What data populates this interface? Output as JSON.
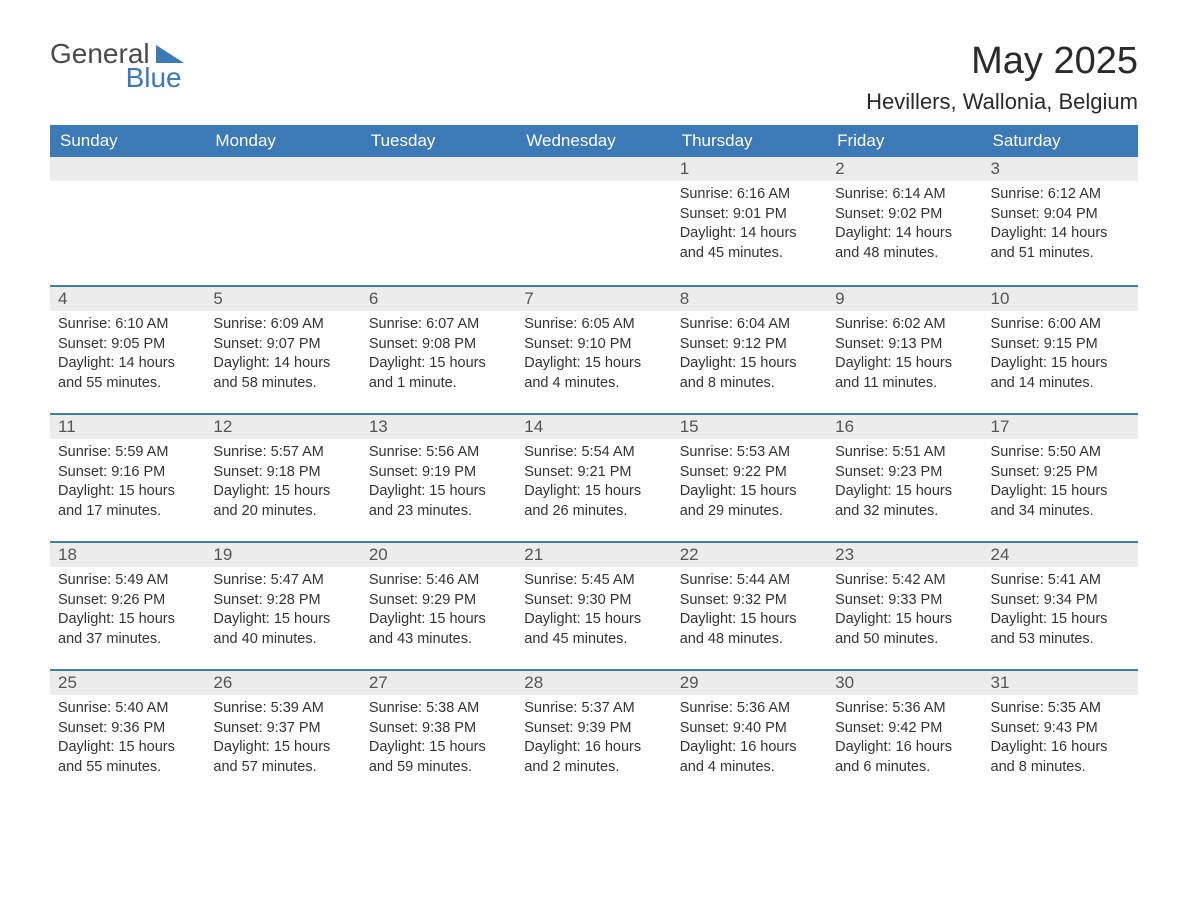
{
  "logo": {
    "word1": "General",
    "word2": "Blue"
  },
  "title": "May 2025",
  "subtitle": "Hevillers, Wallonia, Belgium",
  "colors": {
    "header_bg": "#3b79b7",
    "header_text": "#ffffff",
    "daynum_bg": "#ececec",
    "daynum_border": "#3b79b7",
    "body_bg": "#ffffff",
    "text": "#333333",
    "logo_gray": "#4a4a4a",
    "logo_blue": "#3b79b7"
  },
  "typography": {
    "title_fontsize": 38,
    "subtitle_fontsize": 22,
    "header_fontsize": 17,
    "daynum_fontsize": 17,
    "body_fontsize": 14.5
  },
  "columns": [
    "Sunday",
    "Monday",
    "Tuesday",
    "Wednesday",
    "Thursday",
    "Friday",
    "Saturday"
  ],
  "weeks": [
    [
      null,
      null,
      null,
      null,
      {
        "n": "1",
        "sunrise": "Sunrise: 6:16 AM",
        "sunset": "Sunset: 9:01 PM",
        "day1": "Daylight: 14 hours",
        "day2": "and 45 minutes."
      },
      {
        "n": "2",
        "sunrise": "Sunrise: 6:14 AM",
        "sunset": "Sunset: 9:02 PM",
        "day1": "Daylight: 14 hours",
        "day2": "and 48 minutes."
      },
      {
        "n": "3",
        "sunrise": "Sunrise: 6:12 AM",
        "sunset": "Sunset: 9:04 PM",
        "day1": "Daylight: 14 hours",
        "day2": "and 51 minutes."
      }
    ],
    [
      {
        "n": "4",
        "sunrise": "Sunrise: 6:10 AM",
        "sunset": "Sunset: 9:05 PM",
        "day1": "Daylight: 14 hours",
        "day2": "and 55 minutes."
      },
      {
        "n": "5",
        "sunrise": "Sunrise: 6:09 AM",
        "sunset": "Sunset: 9:07 PM",
        "day1": "Daylight: 14 hours",
        "day2": "and 58 minutes."
      },
      {
        "n": "6",
        "sunrise": "Sunrise: 6:07 AM",
        "sunset": "Sunset: 9:08 PM",
        "day1": "Daylight: 15 hours",
        "day2": "and 1 minute."
      },
      {
        "n": "7",
        "sunrise": "Sunrise: 6:05 AM",
        "sunset": "Sunset: 9:10 PM",
        "day1": "Daylight: 15 hours",
        "day2": "and 4 minutes."
      },
      {
        "n": "8",
        "sunrise": "Sunrise: 6:04 AM",
        "sunset": "Sunset: 9:12 PM",
        "day1": "Daylight: 15 hours",
        "day2": "and 8 minutes."
      },
      {
        "n": "9",
        "sunrise": "Sunrise: 6:02 AM",
        "sunset": "Sunset: 9:13 PM",
        "day1": "Daylight: 15 hours",
        "day2": "and 11 minutes."
      },
      {
        "n": "10",
        "sunrise": "Sunrise: 6:00 AM",
        "sunset": "Sunset: 9:15 PM",
        "day1": "Daylight: 15 hours",
        "day2": "and 14 minutes."
      }
    ],
    [
      {
        "n": "11",
        "sunrise": "Sunrise: 5:59 AM",
        "sunset": "Sunset: 9:16 PM",
        "day1": "Daylight: 15 hours",
        "day2": "and 17 minutes."
      },
      {
        "n": "12",
        "sunrise": "Sunrise: 5:57 AM",
        "sunset": "Sunset: 9:18 PM",
        "day1": "Daylight: 15 hours",
        "day2": "and 20 minutes."
      },
      {
        "n": "13",
        "sunrise": "Sunrise: 5:56 AM",
        "sunset": "Sunset: 9:19 PM",
        "day1": "Daylight: 15 hours",
        "day2": "and 23 minutes."
      },
      {
        "n": "14",
        "sunrise": "Sunrise: 5:54 AM",
        "sunset": "Sunset: 9:21 PM",
        "day1": "Daylight: 15 hours",
        "day2": "and 26 minutes."
      },
      {
        "n": "15",
        "sunrise": "Sunrise: 5:53 AM",
        "sunset": "Sunset: 9:22 PM",
        "day1": "Daylight: 15 hours",
        "day2": "and 29 minutes."
      },
      {
        "n": "16",
        "sunrise": "Sunrise: 5:51 AM",
        "sunset": "Sunset: 9:23 PM",
        "day1": "Daylight: 15 hours",
        "day2": "and 32 minutes."
      },
      {
        "n": "17",
        "sunrise": "Sunrise: 5:50 AM",
        "sunset": "Sunset: 9:25 PM",
        "day1": "Daylight: 15 hours",
        "day2": "and 34 minutes."
      }
    ],
    [
      {
        "n": "18",
        "sunrise": "Sunrise: 5:49 AM",
        "sunset": "Sunset: 9:26 PM",
        "day1": "Daylight: 15 hours",
        "day2": "and 37 minutes."
      },
      {
        "n": "19",
        "sunrise": "Sunrise: 5:47 AM",
        "sunset": "Sunset: 9:28 PM",
        "day1": "Daylight: 15 hours",
        "day2": "and 40 minutes."
      },
      {
        "n": "20",
        "sunrise": "Sunrise: 5:46 AM",
        "sunset": "Sunset: 9:29 PM",
        "day1": "Daylight: 15 hours",
        "day2": "and 43 minutes."
      },
      {
        "n": "21",
        "sunrise": "Sunrise: 5:45 AM",
        "sunset": "Sunset: 9:30 PM",
        "day1": "Daylight: 15 hours",
        "day2": "and 45 minutes."
      },
      {
        "n": "22",
        "sunrise": "Sunrise: 5:44 AM",
        "sunset": "Sunset: 9:32 PM",
        "day1": "Daylight: 15 hours",
        "day2": "and 48 minutes."
      },
      {
        "n": "23",
        "sunrise": "Sunrise: 5:42 AM",
        "sunset": "Sunset: 9:33 PM",
        "day1": "Daylight: 15 hours",
        "day2": "and 50 minutes."
      },
      {
        "n": "24",
        "sunrise": "Sunrise: 5:41 AM",
        "sunset": "Sunset: 9:34 PM",
        "day1": "Daylight: 15 hours",
        "day2": "and 53 minutes."
      }
    ],
    [
      {
        "n": "25",
        "sunrise": "Sunrise: 5:40 AM",
        "sunset": "Sunset: 9:36 PM",
        "day1": "Daylight: 15 hours",
        "day2": "and 55 minutes."
      },
      {
        "n": "26",
        "sunrise": "Sunrise: 5:39 AM",
        "sunset": "Sunset: 9:37 PM",
        "day1": "Daylight: 15 hours",
        "day2": "and 57 minutes."
      },
      {
        "n": "27",
        "sunrise": "Sunrise: 5:38 AM",
        "sunset": "Sunset: 9:38 PM",
        "day1": "Daylight: 15 hours",
        "day2": "and 59 minutes."
      },
      {
        "n": "28",
        "sunrise": "Sunrise: 5:37 AM",
        "sunset": "Sunset: 9:39 PM",
        "day1": "Daylight: 16 hours",
        "day2": "and 2 minutes."
      },
      {
        "n": "29",
        "sunrise": "Sunrise: 5:36 AM",
        "sunset": "Sunset: 9:40 PM",
        "day1": "Daylight: 16 hours",
        "day2": "and 4 minutes."
      },
      {
        "n": "30",
        "sunrise": "Sunrise: 5:36 AM",
        "sunset": "Sunset: 9:42 PM",
        "day1": "Daylight: 16 hours",
        "day2": "and 6 minutes."
      },
      {
        "n": "31",
        "sunrise": "Sunrise: 5:35 AM",
        "sunset": "Sunset: 9:43 PM",
        "day1": "Daylight: 16 hours",
        "day2": "and 8 minutes."
      }
    ]
  ]
}
